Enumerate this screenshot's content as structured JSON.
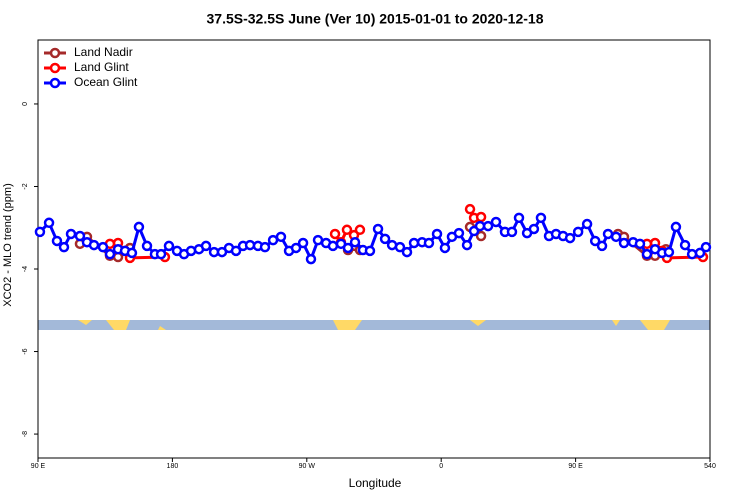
{
  "chart_data": {
    "type": "line",
    "title": "37.5S-32.5S June (Ver 10)   2015-01-01 to 2020-12-18",
    "x_label": "Longitude",
    "y_label": "XCO2 - MLO trend (ppm)",
    "xlim": [
      90,
      540
    ],
    "ylim": [
      -8.58,
      1.55
    ],
    "xticks": [
      {
        "value": 90,
        "label": "90 E"
      },
      180,
      {
        "value": 270,
        "label": "90 W"
      },
      {
        "value": 360,
        "label": "0"
      },
      {
        "value": 450,
        "label": "90 E"
      },
      540
    ],
    "yticks": [
      0,
      -2,
      -4,
      -6,
      -8
    ],
    "legend": "top-left",
    "series": [
      {
        "name": "Land Nadir",
        "color": "#a52a2a",
        "x": [
          118.1,
          122.8,
          138.2,
          143.6,
          151.6,
          null,
          297.6,
          302.3,
          305.6,
          null,
          379.3,
          386.7,
          null,
          478.4,
          482.4,
          497.8,
          503.2,
          510.5
        ],
        "values": [
          -3.39,
          -3.22,
          -3.68,
          -3.71,
          -3.49,
          null,
          -3.54,
          -3.44,
          -3.54,
          null,
          -2.98,
          -3.2,
          null,
          -3.15,
          -3.22,
          -3.68,
          -3.68,
          -3.52
        ]
      },
      {
        "name": "Land Glint",
        "color": "#ff0000",
        "x": [
          138.2,
          143.6,
          148.3,
          151.6,
          175.0,
          null,
          288.9,
          292.9,
          296.9,
          301.6,
          305.6,
          null,
          379.3,
          382.0,
          386.7,
          null,
          497.8,
          503.2,
          507.9,
          511.2,
          535.3
        ],
        "values": [
          -3.39,
          -3.37,
          -3.56,
          -3.73,
          -3.71,
          null,
          -3.15,
          -3.35,
          -3.05,
          -3.18,
          -3.05,
          null,
          -2.55,
          -2.76,
          -2.74,
          null,
          -3.39,
          -3.37,
          -3.56,
          -3.73,
          -3.71
        ]
      },
      {
        "name": "Ocean Glint",
        "color": "#0000ff",
        "x": [
          91.3,
          97.4,
          102.7,
          107.4,
          112.1,
          118.1,
          122.8,
          127.5,
          133.5,
          138.2,
          143.6,
          148.3,
          152.9,
          157.6,
          163.0,
          168.3,
          172.4,
          177.7,
          183.1,
          187.8,
          192.5,
          197.8,
          202.5,
          207.9,
          213.2,
          217.9,
          222.6,
          227.3,
          232.0,
          237.3,
          242.0,
          247.4,
          252.7,
          258.1,
          262.8,
          267.5,
          272.8,
          277.5,
          282.9,
          287.5,
          292.9,
          297.6,
          302.3,
          307.6,
          312.3,
          317.7,
          322.4,
          327.1,
          332.4,
          337.1,
          341.8,
          347.2,
          351.8,
          357.2,
          362.5,
          367.2,
          371.9,
          377.3,
          382.0,
          386.0,
          391.4,
          396.7,
          402.7,
          407.4,
          412.1,
          417.5,
          422.1,
          426.8,
          432.2,
          436.9,
          441.6,
          446.3,
          451.7,
          457.7,
          463.1,
          467.7,
          471.7,
          477.1,
          482.4,
          488.5,
          493.1,
          497.8,
          503.2,
          507.9,
          512.5,
          517.2,
          523.3,
          528.0,
          533.3,
          537.3
        ],
        "values": [
          -3.1,
          -2.88,
          -3.32,
          -3.47,
          -3.15,
          -3.2,
          -3.35,
          -3.42,
          -3.47,
          -3.64,
          -3.52,
          -3.56,
          -3.61,
          -2.98,
          -3.44,
          -3.64,
          -3.64,
          -3.44,
          -3.56,
          -3.64,
          -3.56,
          -3.52,
          -3.44,
          -3.59,
          -3.59,
          -3.49,
          -3.56,
          -3.44,
          -3.42,
          -3.44,
          -3.47,
          -3.3,
          -3.22,
          -3.56,
          -3.49,
          -3.37,
          -3.76,
          -3.3,
          -3.37,
          -3.44,
          -3.39,
          -3.49,
          -3.35,
          -3.54,
          -3.56,
          -3.03,
          -3.27,
          -3.42,
          -3.47,
          -3.59,
          -3.37,
          -3.35,
          -3.37,
          -3.15,
          -3.49,
          -3.22,
          -3.13,
          -3.42,
          -3.08,
          -2.96,
          -2.96,
          -2.86,
          -3.1,
          -3.1,
          -2.76,
          -3.13,
          -3.03,
          -2.76,
          -3.2,
          -3.15,
          -3.2,
          -3.25,
          -3.1,
          -2.91,
          -3.32,
          -3.44,
          -3.15,
          -3.22,
          -3.37,
          -3.35,
          -3.39,
          -3.64,
          -3.52,
          -3.61,
          -3.59,
          -2.98,
          -3.42,
          -3.64,
          -3.61,
          -3.47
        ]
      }
    ]
  }
}
